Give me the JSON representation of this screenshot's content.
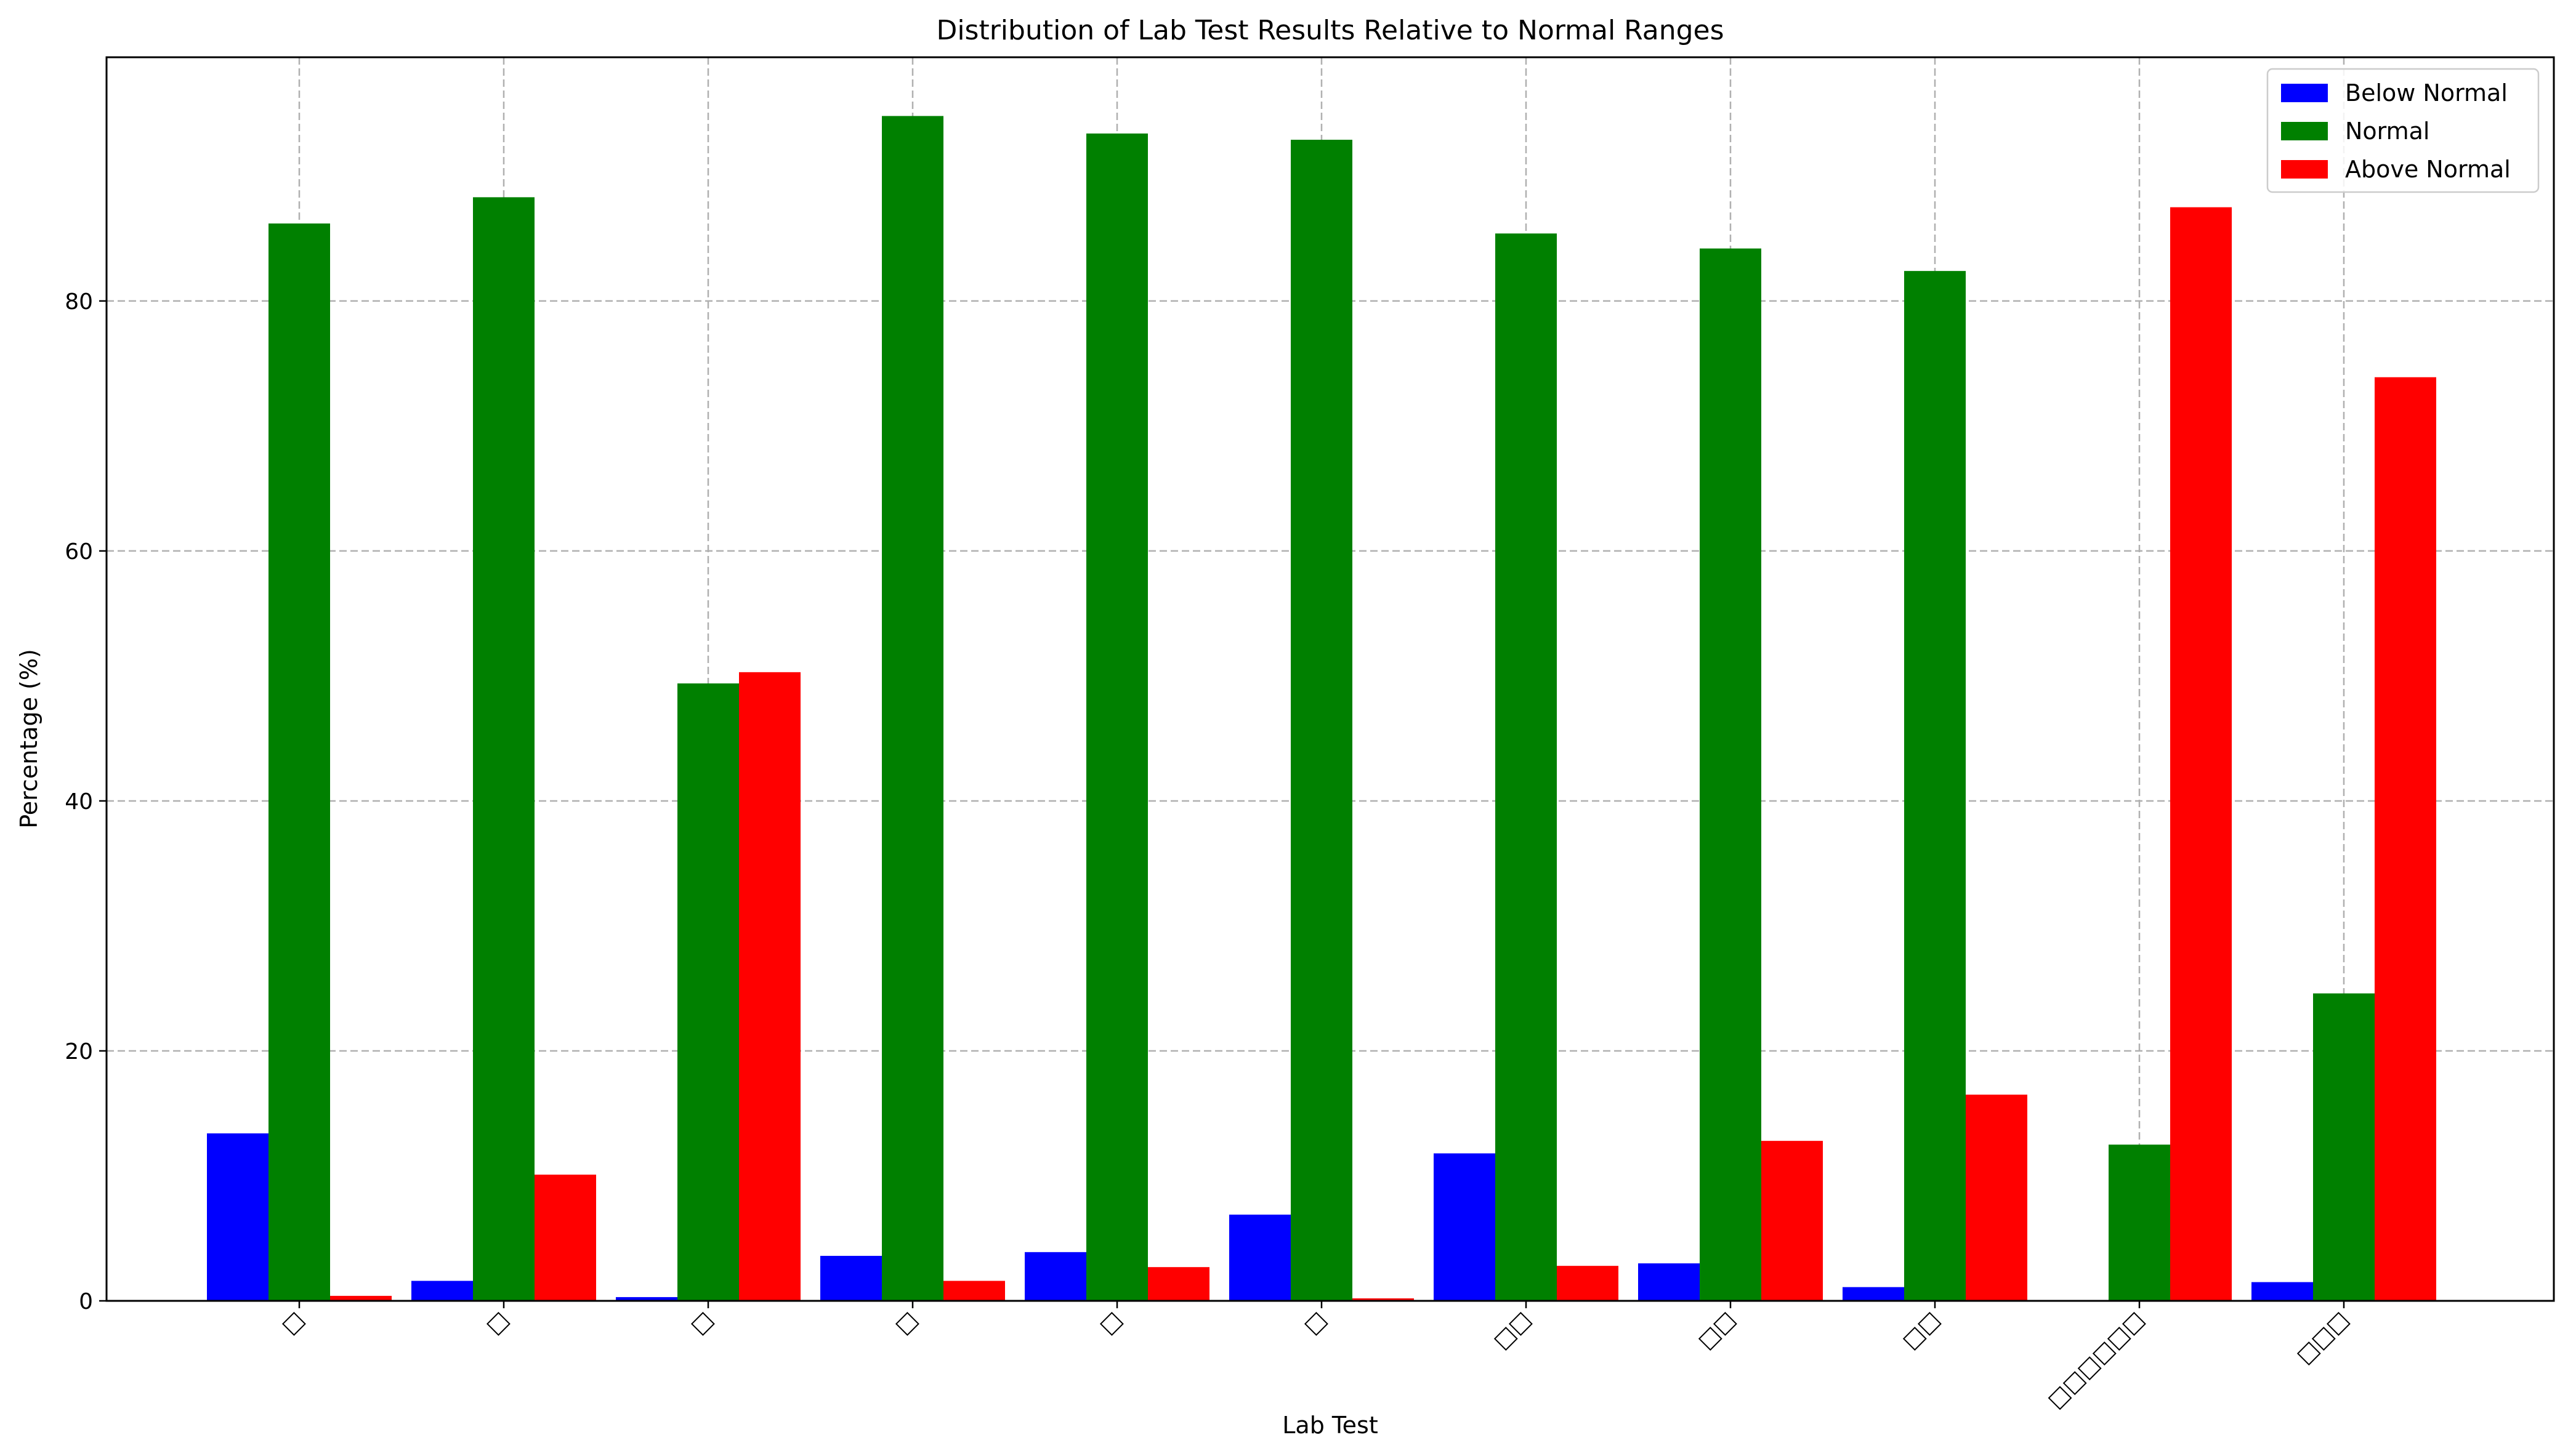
{
  "chart_data": {
    "type": "bar",
    "title": "Distribution of Lab Test Results Relative to Normal Ranges",
    "xlabel": "Lab Test",
    "ylabel": "Percentage (%)",
    "categories": [
      "□",
      "□",
      "□",
      "□",
      "□",
      "□",
      "□□",
      "□□",
      "□□",
      "□□□□□□",
      "□□□"
    ],
    "series": [
      {
        "name": "Below Normal",
        "color": "#0000ff",
        "values": [
          13.4,
          1.6,
          0.3,
          3.6,
          3.9,
          6.9,
          11.8,
          3.0,
          1.1,
          0.0,
          1.5
        ]
      },
      {
        "name": "Normal",
        "color": "#008000",
        "values": [
          86.2,
          88.3,
          49.4,
          94.8,
          93.4,
          92.9,
          85.4,
          84.2,
          82.4,
          12.5,
          24.6
        ]
      },
      {
        "name": "Above Normal",
        "color": "#ff0000",
        "values": [
          0.4,
          10.1,
          50.3,
          1.6,
          2.7,
          0.2,
          2.8,
          12.8,
          16.5,
          87.5,
          73.9
        ]
      }
    ],
    "ylim": [
      0,
      99.5
    ],
    "yticks": [
      0,
      20,
      40,
      60,
      80
    ],
    "grid": true,
    "legend_position": "top-right"
  }
}
